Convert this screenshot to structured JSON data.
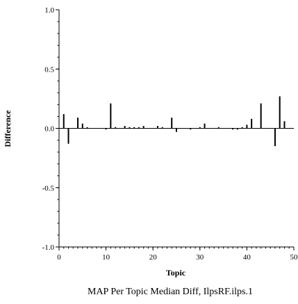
{
  "chart_data": {
    "type": "bar",
    "title": "MAP Per Topic Median Diff, IlpsRF.ilps.1",
    "xlabel": "Topic",
    "ylabel": "Difference",
    "xlim": [
      0,
      50
    ],
    "ylim": [
      -1.0,
      1.0
    ],
    "xticks": [
      0,
      10,
      20,
      30,
      40,
      50
    ],
    "xtick_labels": [
      "0",
      "10",
      "20",
      "30",
      "40",
      "50"
    ],
    "yticks": [
      -1.0,
      -0.5,
      0.0,
      0.5,
      1.0
    ],
    "ytick_labels": [
      "-1.0",
      "-0.5",
      "0.0",
      "0.5",
      "1.0"
    ],
    "grid": false,
    "x": [
      1,
      2,
      3,
      4,
      5,
      6,
      7,
      8,
      9,
      10,
      11,
      12,
      13,
      14,
      15,
      16,
      17,
      18,
      19,
      20,
      21,
      22,
      23,
      24,
      25,
      26,
      27,
      28,
      29,
      30,
      31,
      32,
      33,
      34,
      35,
      36,
      37,
      38,
      39,
      40,
      41,
      42,
      43,
      44,
      45,
      46,
      47,
      48,
      49,
      50
    ],
    "values": [
      0.12,
      -0.13,
      0.0,
      0.09,
      0.04,
      0.01,
      0.0,
      0.0,
      0.0,
      -0.01,
      0.21,
      0.01,
      0.0,
      0.02,
      0.01,
      0.01,
      0.01,
      0.02,
      0.0,
      0.0,
      0.02,
      0.01,
      0.0,
      0.09,
      -0.03,
      0.0,
      0.0,
      -0.01,
      0.0,
      0.01,
      0.04,
      0.0,
      0.0,
      0.01,
      0.0,
      0.0,
      -0.01,
      -0.01,
      0.01,
      0.03,
      0.08,
      0.0,
      0.21,
      0.0,
      0.0,
      -0.15,
      0.27,
      0.06,
      0.0,
      0.0
    ]
  }
}
